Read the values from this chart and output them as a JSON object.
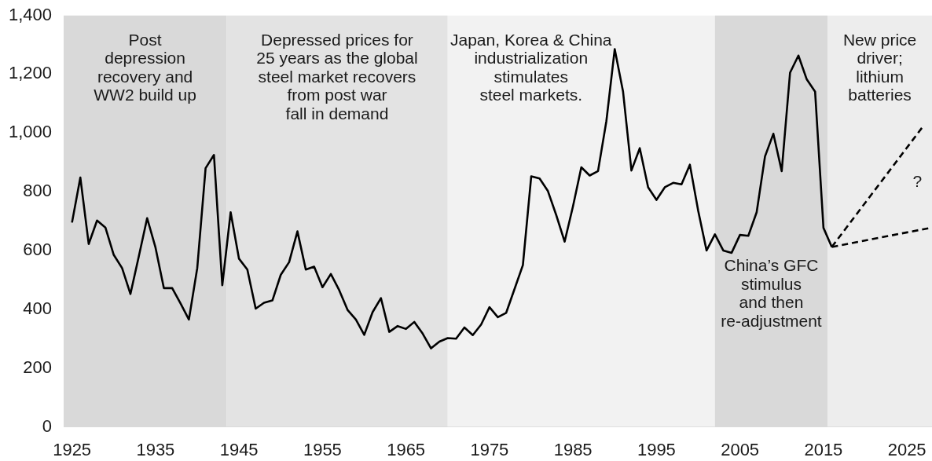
{
  "chart_data": {
    "type": "line",
    "x": [
      1925,
      1926,
      1927,
      1928,
      1929,
      1930,
      1931,
      1932,
      1933,
      1934,
      1935,
      1936,
      1937,
      1938,
      1939,
      1940,
      1941,
      1942,
      1943,
      1944,
      1945,
      1946,
      1947,
      1948,
      1949,
      1950,
      1951,
      1952,
      1953,
      1954,
      1955,
      1956,
      1957,
      1958,
      1959,
      1960,
      1961,
      1962,
      1963,
      1964,
      1965,
      1966,
      1967,
      1968,
      1969,
      1970,
      1971,
      1972,
      1973,
      1974,
      1975,
      1976,
      1977,
      1978,
      1979,
      1980,
      1981,
      1982,
      1983,
      1984,
      1985,
      1986,
      1987,
      1988,
      1989,
      1990,
      1991,
      1992,
      1993,
      1994,
      1995,
      1996,
      1997,
      1998,
      1999,
      2000,
      2001,
      2002,
      2003,
      2004,
      2005,
      2006,
      2007,
      2008,
      2009,
      2010,
      2011,
      2012,
      2013,
      2014,
      2015,
      2016
    ],
    "series": [
      {
        "color": "#000000",
        "values": [
          695,
          848,
          622,
          702,
          678,
          585,
          540,
          452,
          580,
          710,
          610,
          472,
          472,
          420,
          365,
          540,
          880,
          925,
          482,
          730,
          572,
          535,
          402,
          422,
          430,
          517,
          560,
          665,
          535,
          545,
          475,
          520,
          465,
          398,
          365,
          313,
          390,
          438,
          323,
          343,
          333,
          357,
          317,
          267,
          290,
          302,
          300,
          338,
          312,
          348,
          407,
          373,
          388,
          469,
          550,
          852,
          845,
          802,
          720,
          630,
          750,
          883,
          855,
          870,
          1040,
          1285,
          1140,
          872,
          948,
          815,
          772,
          815,
          830,
          825,
          892,
          735,
          600,
          655,
          600,
          592,
          653,
          650,
          730,
          920,
          997,
          870,
          1205,
          1263,
          1182,
          1140,
          677,
          612
        ]
      },
      {
        "type": "line",
        "x": [
          2016,
          2027
        ],
        "values": [
          612,
          1025
        ],
        "color": "#000000",
        "line_style": "dashed"
      },
      {
        "type": "line",
        "x": [
          2016,
          2028
        ],
        "values": [
          612,
          678
        ],
        "color": "#000000",
        "line_style": "dashed"
      }
    ],
    "xlim": [
      1924,
      2028
    ],
    "xticks": [
      1925,
      1935,
      1945,
      1955,
      1965,
      1975,
      1985,
      1995,
      2005,
      2015,
      2025
    ],
    "ylim": [
      0,
      1400
    ],
    "yticks": [
      0,
      200,
      400,
      600,
      800,
      {
        "value": 1000,
        "label": "1,000"
      },
      {
        "value": 1200,
        "label": "1,200"
      },
      {
        "value": 1400,
        "label": "1,400"
      }
    ],
    "grid": false,
    "legend": false,
    "marker": "none",
    "line_style": "solid",
    "bands": [
      {
        "axis": "x",
        "from": 1924,
        "to": 1943.5,
        "label": "Post\ndepression\nrecovery and\nWW2 build up",
        "color": "#d9d9d9"
      },
      {
        "axis": "x",
        "from": 1943.5,
        "to": 1970,
        "label": "Depressed prices for\n25 years as the global\nsteel market recovers\nfrom post war\nfall in demand",
        "color": "#e3e3e3"
      },
      {
        "axis": "x",
        "from": 1970,
        "to": 2002,
        "label": "Japan, Korea & China\nindustrialization\nstimulates\nsteel markets.",
        "color": "#f2f2f2"
      },
      {
        "axis": "x",
        "from": 2002,
        "to": 2015.5,
        "label": "China’s GFC\nstimulus\nand then\nre-adjustment",
        "color": "#d9d9d9"
      },
      {
        "axis": "x",
        "from": 2015.5,
        "to": 2028,
        "label": "New price\ndriver;\nlithium\nbatteries",
        "color": "#ededed"
      }
    ],
    "annotations": [
      "?"
    ]
  }
}
